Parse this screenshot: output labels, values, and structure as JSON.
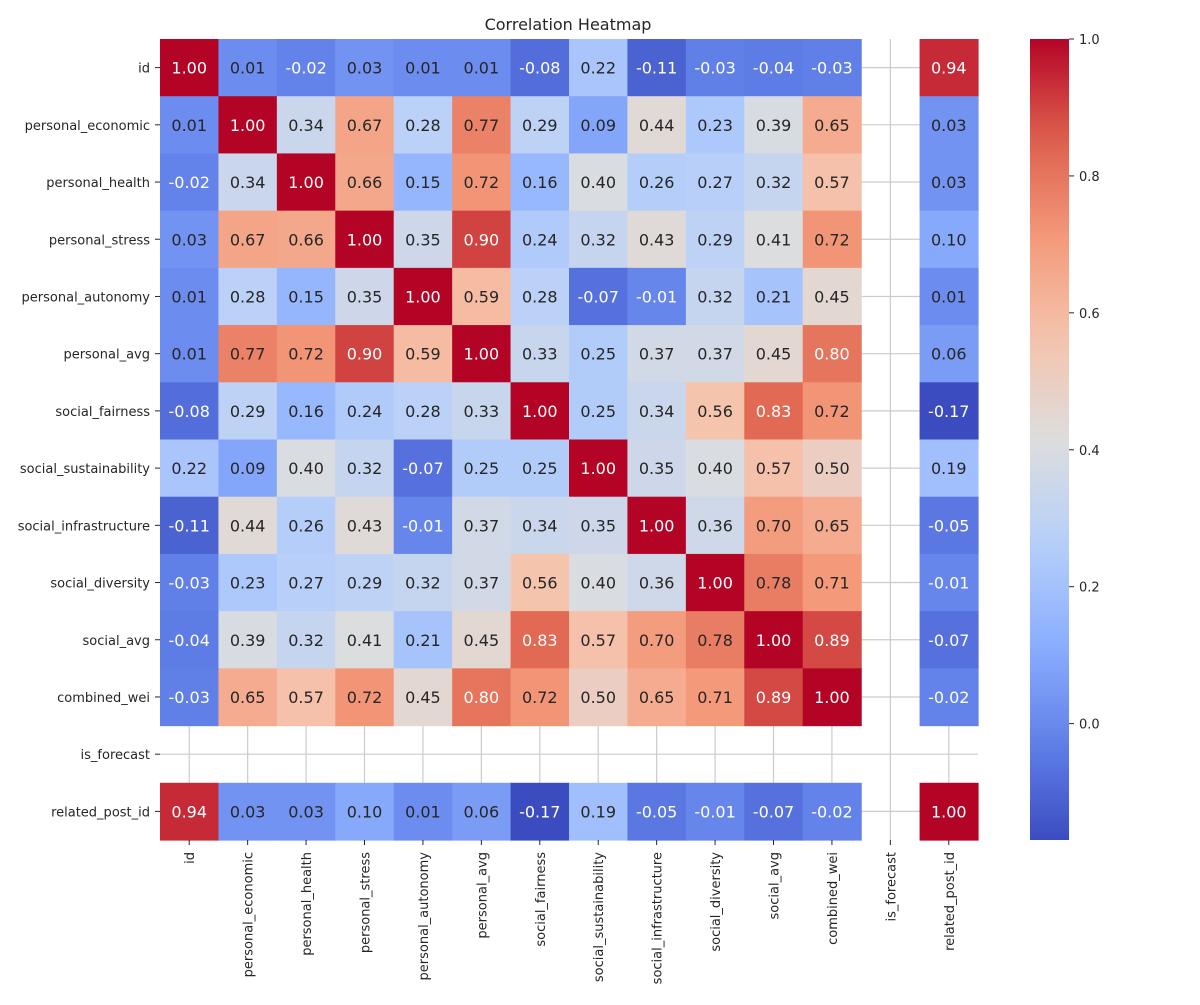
{
  "chart_data": {
    "type": "heatmap",
    "title": "Correlation Heatmap",
    "colormap": "coolwarm",
    "vmin": -0.17,
    "vmax": 1.0,
    "row_labels": [
      "id",
      "personal_economic",
      "personal_health",
      "personal_stress",
      "personal_autonomy",
      "personal_avg",
      "social_fairness",
      "social_sustainability",
      "social_infrastructure",
      "social_diversity",
      "social_avg",
      "combined_wei",
      "is_forecast",
      "related_post_id"
    ],
    "col_labels": [
      "id",
      "personal_economic",
      "personal_health",
      "personal_stress",
      "personal_autonomy",
      "personal_avg",
      "social_fairness",
      "social_sustainability",
      "social_infrastructure",
      "social_diversity",
      "social_avg",
      "combined_wei",
      "is_forecast",
      "related_post_id"
    ],
    "values": [
      [
        1.0,
        0.01,
        -0.02,
        0.03,
        0.01,
        0.01,
        -0.08,
        0.22,
        -0.11,
        -0.03,
        -0.04,
        -0.03,
        null,
        0.94
      ],
      [
        0.01,
        1.0,
        0.34,
        0.67,
        0.28,
        0.77,
        0.29,
        0.09,
        0.44,
        0.23,
        0.39,
        0.65,
        null,
        0.03
      ],
      [
        -0.02,
        0.34,
        1.0,
        0.66,
        0.15,
        0.72,
        0.16,
        0.4,
        0.26,
        0.27,
        0.32,
        0.57,
        null,
        0.03
      ],
      [
        0.03,
        0.67,
        0.66,
        1.0,
        0.35,
        0.9,
        0.24,
        0.32,
        0.43,
        0.29,
        0.41,
        0.72,
        null,
        0.1
      ],
      [
        0.01,
        0.28,
        0.15,
        0.35,
        1.0,
        0.59,
        0.28,
        -0.07,
        -0.01,
        0.32,
        0.21,
        0.45,
        null,
        0.01
      ],
      [
        0.01,
        0.77,
        0.72,
        0.9,
        0.59,
        1.0,
        0.33,
        0.25,
        0.37,
        0.37,
        0.45,
        0.8,
        null,
        0.06
      ],
      [
        -0.08,
        0.29,
        0.16,
        0.24,
        0.28,
        0.33,
        1.0,
        0.25,
        0.34,
        0.56,
        0.83,
        0.72,
        null,
        -0.17
      ],
      [
        0.22,
        0.09,
        0.4,
        0.32,
        -0.07,
        0.25,
        0.25,
        1.0,
        0.35,
        0.4,
        0.57,
        0.5,
        null,
        0.19
      ],
      [
        -0.11,
        0.44,
        0.26,
        0.43,
        -0.01,
        0.37,
        0.34,
        0.35,
        1.0,
        0.36,
        0.7,
        0.65,
        null,
        -0.05
      ],
      [
        -0.03,
        0.23,
        0.27,
        0.29,
        0.32,
        0.37,
        0.56,
        0.4,
        0.36,
        1.0,
        0.78,
        0.71,
        null,
        -0.01
      ],
      [
        -0.04,
        0.39,
        0.32,
        0.41,
        0.21,
        0.45,
        0.83,
        0.57,
        0.7,
        0.78,
        1.0,
        0.89,
        null,
        -0.07
      ],
      [
        -0.03,
        0.65,
        0.57,
        0.72,
        0.45,
        0.8,
        0.72,
        0.5,
        0.65,
        0.71,
        0.89,
        1.0,
        null,
        -0.02
      ],
      [
        null,
        null,
        null,
        null,
        null,
        null,
        null,
        null,
        null,
        null,
        null,
        null,
        null,
        null
      ],
      [
        0.94,
        0.03,
        0.03,
        0.1,
        0.01,
        0.06,
        -0.17,
        0.19,
        -0.05,
        -0.01,
        -0.07,
        -0.02,
        null,
        1.0
      ]
    ],
    "colorbar_ticks": [
      0.0,
      0.2,
      0.4,
      0.6,
      0.8,
      1.0
    ],
    "colorbar_tick_labels": [
      "0.0",
      "0.2",
      "0.4",
      "0.6",
      "0.8",
      "1.0"
    ],
    "grid": true
  }
}
